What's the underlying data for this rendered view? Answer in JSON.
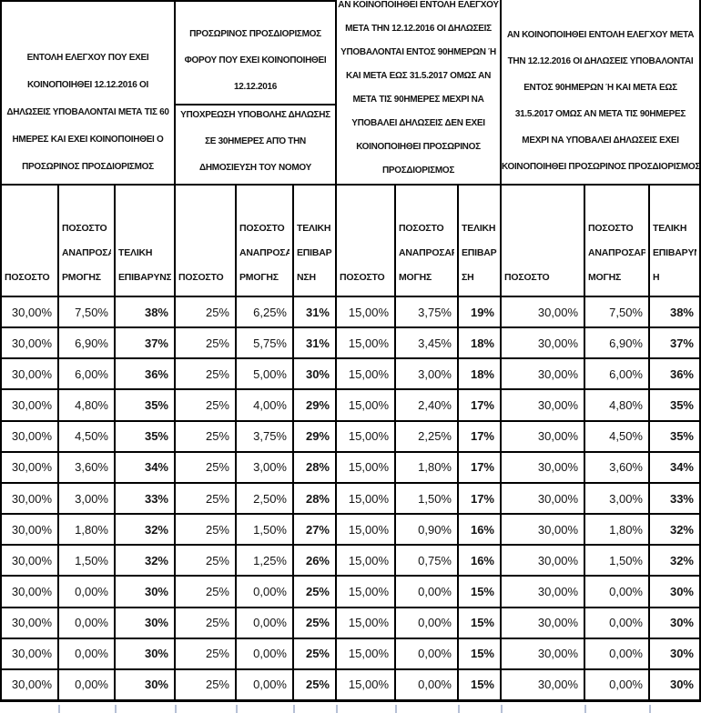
{
  "table": {
    "groups": [
      {
        "lines": [
          "ΕΝΤΟΛΗ ΕΛΕΓΧΟΥ ΠΟΥ ΕΧΕΙ",
          "ΚΟΙΝΟΠΟΙΗΘΕΙ 12.12.2016 ΟΙ",
          "ΔΗΛΩΣΕΙΣ ΥΠΟΒΑΛΟΝΤΑΙ ΜΕΤΑ ΤΙΣ  60",
          "ΗΜΕΡΕΣ ΚΑΙ ΕΧΕΙ  ΚΟΙΝΟΠΟΙΗΘΕΙ Ο",
          "ΠΡΟΣΩΡΙΝΟΣ ΠΡΟΣΔΙΟΡΙΣΜΟΣ"
        ]
      },
      {
        "top_lines": [
          "ΠΡΟΣΩΡΙΝΟΣ ΠΡΟΣΔΙΟΡΙΣΜΟΣ",
          "ΦΟΡΟΥ ΠΟΥ ΕΧΕΙ ΚΟΙΝΟΠΟΙΗΘΕΙ",
          "12.12.2016"
        ],
        "bottom_lines": [
          "ΥΠΟΧΡΕΩΣΗ ΥΠΟΒΟΛΗΣ ΔΗΛΩΣΗΣ",
          "ΣΕ 30ΗΜΕΡΕΣ ΑΠΌ ΤΗΝ",
          "ΔΗΜΟΣΙΕΥΣΗ ΤΟΥ ΝΟΜΟΥ"
        ]
      },
      {
        "lines": [
          "ΑΝ ΚΟΙΝΟΠΟΙΗΘΕΙ ΕΝΤΟΛΗ ΕΛΕΓΧΟΥ",
          "ΜΕΤΑ ΤΗΝ 12.12.2016 ΟΙ ΔΗΛΩΣΕΙΣ",
          "ΥΠΟΒΑΛΟΝΤΑΙ ΕΝΤΟΣ 90ΗΜΕΡΩΝ Ή",
          "ΚΑΙ ΜΕΤΑ ΕΩΣ 31.5.2017 ΟΜΩΣ ΑΝ",
          "ΜΕΤΑ ΤΙΣ 90ΗΜΕΡΕΣ ΜΕΧΡΙ ΝΑ",
          "ΥΠΟΒΑΛΕΙ ΔΗΛΩΣΕΙΣ ΔΕΝ ΕΧΕΙ",
          "ΚΟΙΝΟΠΟΙΗΘΕΙ ΠΡΟΣΩΡΙΝΟΣ",
          "ΠΡΟΣΔΙΟΡΙΣΜΟΣ"
        ]
      },
      {
        "lines": [
          "ΑΝ ΚΟΙΝΟΠΟΙΗΘΕΙ ΕΝΤΟΛΗ ΕΛΕΓΧΟΥ ΜΕΤΑ",
          "ΤΗΝ 12.12.2016 ΟΙ ΔΗΛΩΣΕΙΣ ΥΠΟΒΑΛΟΝΤΑΙ",
          "ΕΝΤΟΣ 90ΗΜΕΡΩΝ Ή ΚΑΙ ΜΕΤΑ ΕΩΣ",
          "31.5.2017 ΟΜΩΣ ΑΝ ΜΕΤΑ ΤΙΣ 90ΗΜΕΡΕΣ",
          "ΜΕΧΡΙ ΝΑ ΥΠΟΒΑΛΕΙ ΔΗΛΩΣΕΙΣ ΕΧΕΙ",
          "ΚΟΙΝΟΠΟΙΗΘΕΙ ΠΡΟΣΩΡΙΝΟΣ ΠΡΟΣΔΙΟΡΙΣΜΟΣ"
        ]
      }
    ],
    "sub_headers": [
      [
        "ΠΟΣΟΣΤΟ"
      ],
      [
        "ΠΟΣΟΣΤΟ",
        "ΑΝΑΠΡΟΣΑ",
        "ΡΜΟΓΗΣ"
      ],
      [
        "ΤΕΛΙΚΗ",
        "ΕΠΙΒΑΡΥΝΣΗ"
      ],
      [
        "ΠΟΣΟΣΤΟ"
      ],
      [
        "ΠΟΣΟΣΤΟ",
        "ΑΝΑΠΡΟΣΑ",
        "ΡΜΟΓΗΣ"
      ],
      [
        "ΤΕΛΙΚΗ",
        "ΕΠΙΒΑΡΥ",
        "ΝΣΗ"
      ],
      [
        "ΠΟΣΟΣΤΟ"
      ],
      [
        "ΠΟΣΟΣΤΟ",
        "ΑΝΑΠΡΟΣΑΡ",
        "ΜΟΓΗΣ"
      ],
      [
        "ΤΕΛΙΚΗ",
        "ΕΠΙΒΑΡΥΝ",
        "ΣΗ"
      ],
      [
        "ΠΟΣΟΣΤΟ"
      ],
      [
        "ΠΟΣΟΣΤΟ",
        "ΑΝΑΠΡΟΣΑΡ",
        "ΜΟΓΗΣ"
      ],
      [
        "ΤΕΛΙΚΗ",
        "ΕΠΙΒΑΡΥΝΣ",
        "Η"
      ]
    ],
    "rows": [
      [
        "30,00%",
        "7,50%",
        "38%",
        "25%",
        "6,25%",
        "31%",
        "15,00%",
        "3,75%",
        "19%",
        "30,00%",
        "7,50%",
        "38%"
      ],
      [
        "30,00%",
        "6,90%",
        "37%",
        "25%",
        "5,75%",
        "31%",
        "15,00%",
        "3,45%",
        "18%",
        "30,00%",
        "6,90%",
        "37%"
      ],
      [
        "30,00%",
        "6,00%",
        "36%",
        "25%",
        "5,00%",
        "30%",
        "15,00%",
        "3,00%",
        "18%",
        "30,00%",
        "6,00%",
        "36%"
      ],
      [
        "30,00%",
        "4,80%",
        "35%",
        "25%",
        "4,00%",
        "29%",
        "15,00%",
        "2,40%",
        "17%",
        "30,00%",
        "4,80%",
        "35%"
      ],
      [
        "30,00%",
        "4,50%",
        "35%",
        "25%",
        "3,75%",
        "29%",
        "15,00%",
        "2,25%",
        "17%",
        "30,00%",
        "4,50%",
        "35%"
      ],
      [
        "30,00%",
        "3,60%",
        "34%",
        "25%",
        "3,00%",
        "28%",
        "15,00%",
        "1,80%",
        "17%",
        "30,00%",
        "3,60%",
        "34%"
      ],
      [
        "30,00%",
        "3,00%",
        "33%",
        "25%",
        "2,50%",
        "28%",
        "15,00%",
        "1,50%",
        "17%",
        "30,00%",
        "3,00%",
        "33%"
      ],
      [
        "30,00%",
        "1,80%",
        "32%",
        "25%",
        "1,50%",
        "27%",
        "15,00%",
        "0,90%",
        "16%",
        "30,00%",
        "1,80%",
        "32%"
      ],
      [
        "30,00%",
        "1,50%",
        "32%",
        "25%",
        "1,25%",
        "26%",
        "15,00%",
        "0,75%",
        "16%",
        "30,00%",
        "1,50%",
        "32%"
      ],
      [
        "30,00%",
        "0,00%",
        "30%",
        "25%",
        "0,00%",
        "25%",
        "15,00%",
        "0,00%",
        "15%",
        "30,00%",
        "0,00%",
        "30%"
      ],
      [
        "30,00%",
        "0,00%",
        "30%",
        "25%",
        "0,00%",
        "25%",
        "15,00%",
        "0,00%",
        "15%",
        "30,00%",
        "0,00%",
        "30%"
      ],
      [
        "30,00%",
        "0,00%",
        "30%",
        "25%",
        "0,00%",
        "25%",
        "15,00%",
        "0,00%",
        "15%",
        "30,00%",
        "0,00%",
        "30%"
      ],
      [
        "30,00%",
        "0,00%",
        "30%",
        "25%",
        "0,00%",
        "25%",
        "15,00%",
        "0,00%",
        "15%",
        "30,00%",
        "0,00%",
        "30%"
      ]
    ],
    "colors": {
      "border": "#000000",
      "text": "#141414",
      "background": "#ffffff",
      "gridline_stub": "#b6c0d6"
    }
  }
}
